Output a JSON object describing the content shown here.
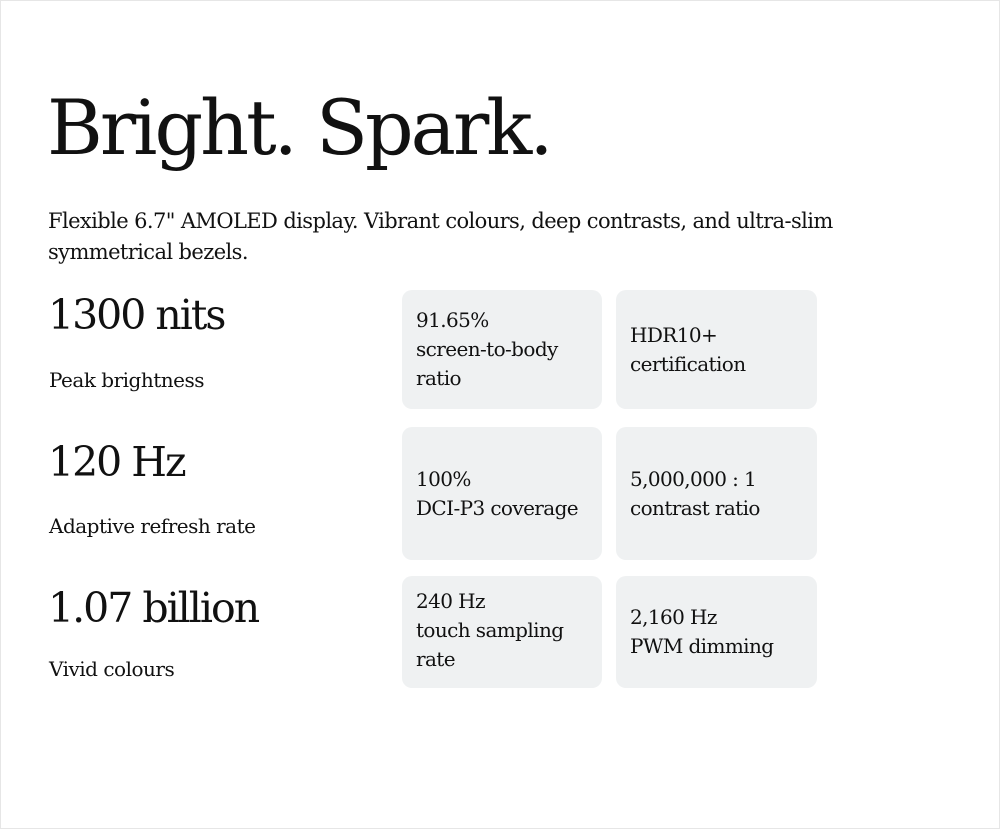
{
  "headline": "Bright. Spark.",
  "description": "Flexible 6.7\" AMOLED display. Vibrant colours, deep contrasts, and ultra-slim symmetrical bezels.",
  "stats": [
    {
      "value": "1300 nits",
      "label": "Peak brightness"
    },
    {
      "value": "120 Hz",
      "label": "Adaptive refresh rate"
    },
    {
      "value": "1.07 billion",
      "label": "Vivid colours"
    }
  ],
  "cards": [
    {
      "text": "91.65%\nscreen-to-body\nratio"
    },
    {
      "text": "HDR10+\ncertification"
    },
    {
      "text": "100%\nDCI-P3 coverage"
    },
    {
      "text": "5,000,000 : 1\ncontrast ratio"
    },
    {
      "text": "240 Hz\ntouch sampling\nrate"
    },
    {
      "text": "2,160 Hz\nPWM dimming"
    }
  ],
  "colors": {
    "card_bg": "#eff1f2",
    "text": "#111111",
    "background": "#ffffff"
  }
}
